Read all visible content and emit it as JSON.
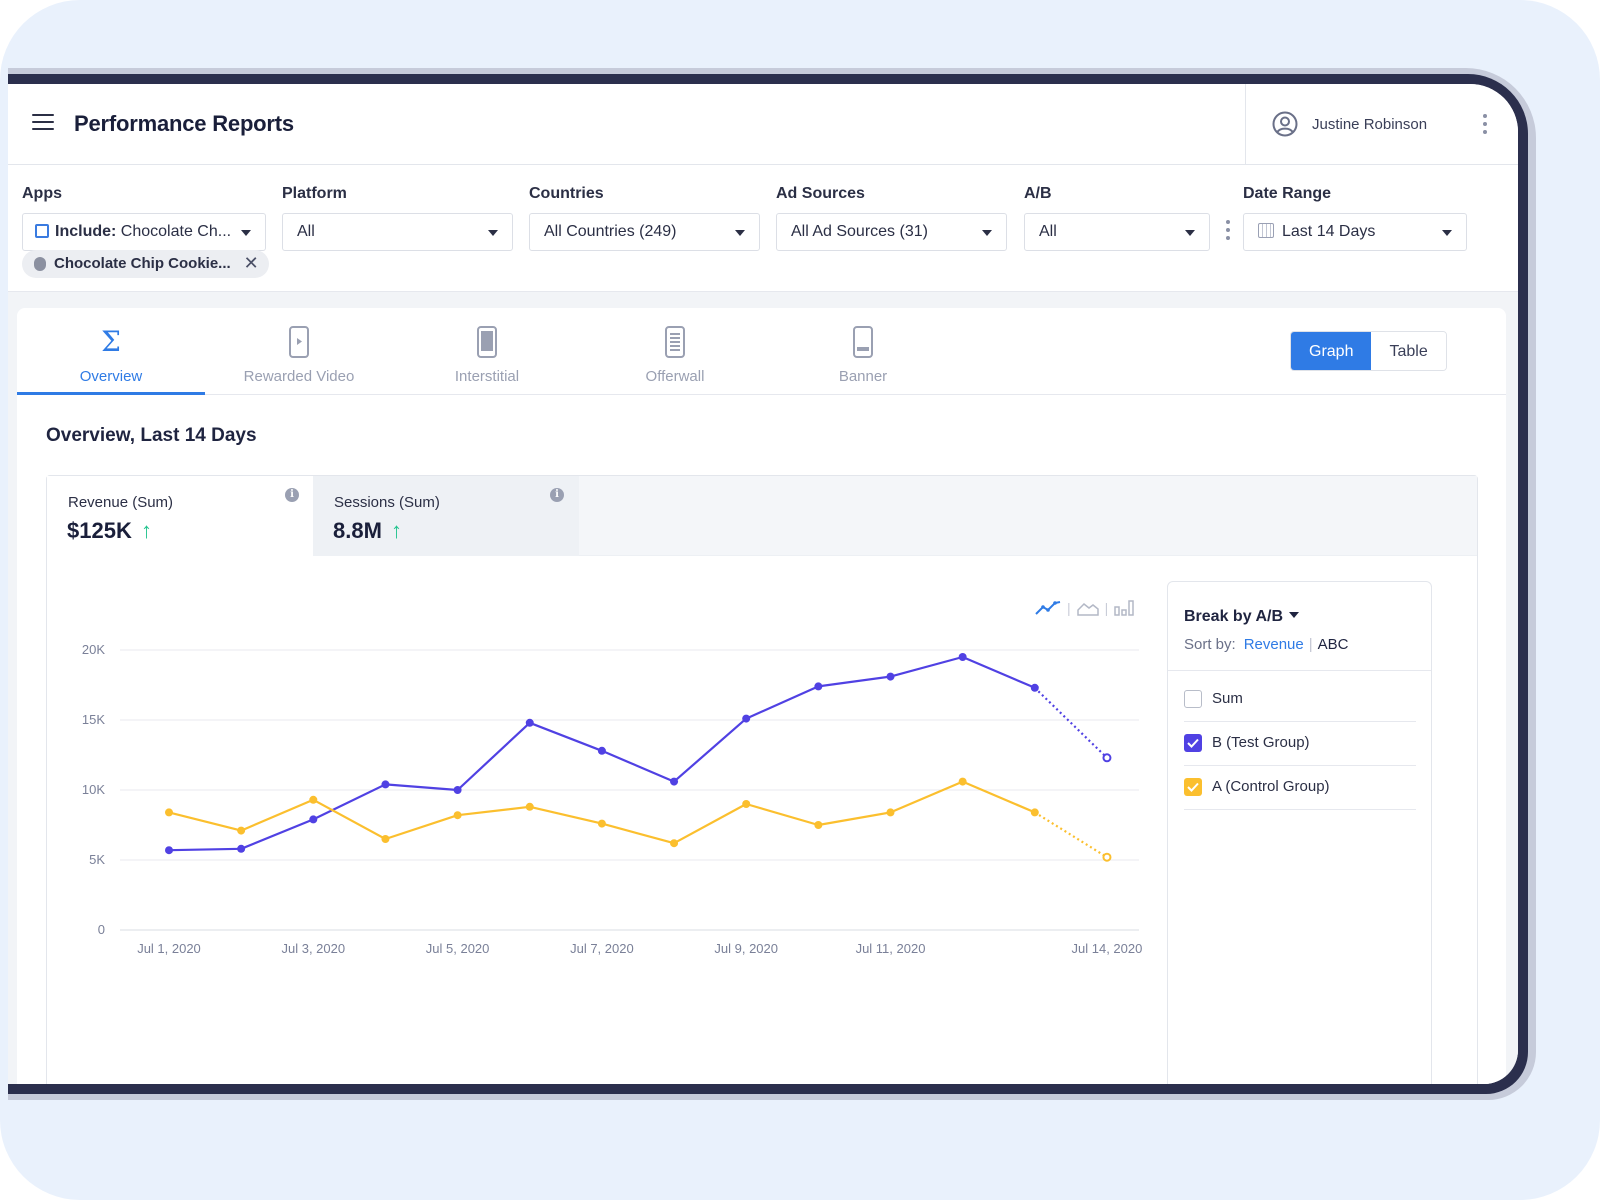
{
  "header": {
    "title": "Performance Reports",
    "user_name": "Justine Robinson"
  },
  "filters": {
    "apps": {
      "label": "Apps",
      "prefix": "Include:",
      "value": "Chocolate Ch..."
    },
    "platform": {
      "label": "Platform",
      "value": "All"
    },
    "countries": {
      "label": "Countries",
      "value": "All Countries (249)"
    },
    "ad_sources": {
      "label": "Ad Sources",
      "value": "All Ad Sources (31)"
    },
    "ab": {
      "label": "A/B",
      "value": "All"
    },
    "date_range": {
      "label": "Date Range",
      "value": "Last 14 Days"
    },
    "tag": "Chocolate Chip Cookie..."
  },
  "tabs": [
    {
      "label": "Overview",
      "icon": "sigma-icon",
      "active": true
    },
    {
      "label": "Rewarded Video",
      "icon": "rewarded-video-icon"
    },
    {
      "label": "Interstitial",
      "icon": "interstitial-icon"
    },
    {
      "label": "Offerwall",
      "icon": "offerwall-icon"
    },
    {
      "label": "Banner",
      "icon": "banner-icon"
    }
  ],
  "view_toggle": {
    "graph": "Graph",
    "table": "Table",
    "selected": "Graph"
  },
  "section_title": "Overview,  Last 14 Days",
  "metrics": [
    {
      "name": "Revenue (Sum)",
      "value": "$125K",
      "trend": "up"
    },
    {
      "name": "Sessions (Sum)",
      "value": "8.8M",
      "trend": "up"
    }
  ],
  "breakdown": {
    "title": "Break by A/B",
    "sort_label": "Sort by:",
    "sort_revenue": "Revenue",
    "sort_abc": "ABC",
    "items": [
      {
        "label": "Sum",
        "checked": false,
        "color": ""
      },
      {
        "label": "B (Test Group)",
        "checked": true,
        "color": "#5041e3"
      },
      {
        "label": "A (Control Group)",
        "checked": true,
        "color": "#fbbf2e"
      }
    ]
  },
  "colors": {
    "accent": "#2f7be5",
    "series_b": "#5041e3",
    "series_a": "#fbbf2e",
    "trend_up": "#22c38e"
  },
  "chart_data": {
    "type": "line",
    "title": "",
    "xlabel": "",
    "ylabel": "",
    "x": [
      "Jul 1, 2020",
      "Jul 2, 2020",
      "Jul 3, 2020",
      "Jul 4, 2020",
      "Jul 5, 2020",
      "Jul 6, 2020",
      "Jul 7, 2020",
      "Jul 8, 2020",
      "Jul 9, 2020",
      "Jul 10, 2020",
      "Jul 11, 2020",
      "Jul 12, 2020",
      "Jul 13, 2020",
      "Jul 14, 2020"
    ],
    "x_tick_labels": [
      "Jul 1, 2020",
      "Jul 3, 2020",
      "Jul 5, 2020",
      "Jul 7, 2020",
      "Jul 9, 2020",
      "Jul 11, 2020",
      "Jul 14, 2020"
    ],
    "y_ticks": [
      0,
      5000,
      10000,
      15000,
      20000
    ],
    "y_tick_labels": [
      "0",
      "5K",
      "10K",
      "15K",
      "20K"
    ],
    "ylim": [
      0,
      20000
    ],
    "grid": true,
    "last_point_projected": true,
    "series": [
      {
        "name": "B (Test Group)",
        "color": "#5041e3",
        "values": [
          5700,
          5800,
          7900,
          10400,
          10000,
          14800,
          12800,
          10600,
          15100,
          17400,
          18100,
          19500,
          17300,
          12300
        ]
      },
      {
        "name": "A (Control Group)",
        "color": "#fbbf2e",
        "values": [
          8400,
          7100,
          9300,
          6500,
          8200,
          8800,
          7600,
          6200,
          9000,
          7500,
          8400,
          10600,
          8400,
          5200
        ]
      }
    ]
  }
}
